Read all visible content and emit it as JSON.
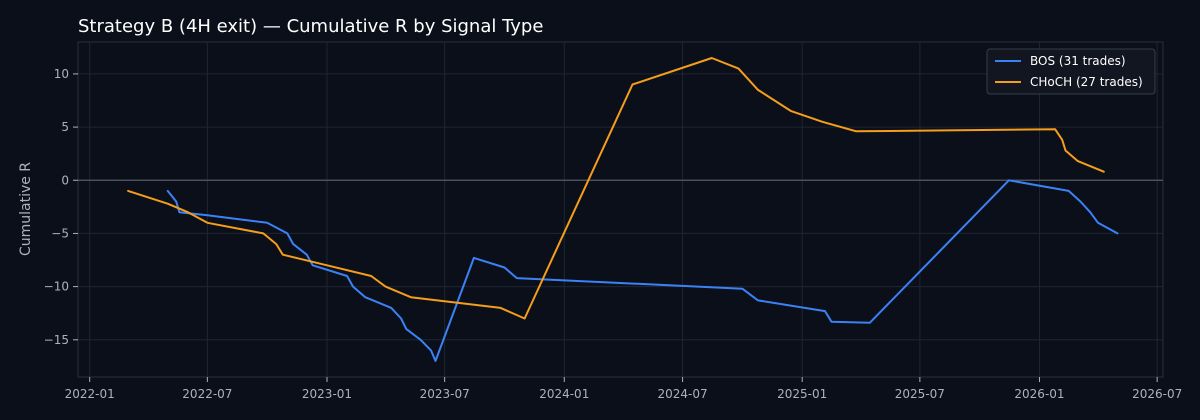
{
  "chart_data": {
    "type": "line",
    "title": "Strategy B (4H exit) — Cumulative R by Signal Type",
    "xlabel": "",
    "ylabel": "Cumulative R",
    "xlim": [
      "2021-12-14",
      "2026-07-10"
    ],
    "ylim": [
      -18.5,
      13
    ],
    "x_ticks": [
      "2022-01",
      "2022-07",
      "2023-01",
      "2023-07",
      "2024-01",
      "2024-07",
      "2025-01",
      "2025-07",
      "2026-01",
      "2026-07"
    ],
    "y_ticks": [
      -15,
      -10,
      -5,
      0,
      5,
      10
    ],
    "grid": true,
    "zero_line": true,
    "legend": {
      "position": "top-right"
    },
    "colors": {
      "background": "#0b0f19",
      "grid": "#1f2533",
      "zero_line": "#555b66",
      "BOS": "#3b82f6",
      "CHoCH": "#f59e1b"
    },
    "series": [
      {
        "name": "BOS (31 trades)",
        "color": "#3b82f6",
        "points": [
          [
            "2022-05-01",
            -1.0
          ],
          [
            "2022-05-14",
            -2.0
          ],
          [
            "2022-05-19",
            -3.0
          ],
          [
            "2022-07-01",
            -3.3
          ],
          [
            "2022-10-01",
            -4.0
          ],
          [
            "2022-11-01",
            -5.0
          ],
          [
            "2022-11-10",
            -6.0
          ],
          [
            "2022-12-01",
            -7.0
          ],
          [
            "2022-12-10",
            -8.0
          ],
          [
            "2023-02-01",
            -9.0
          ],
          [
            "2023-02-10",
            -10.0
          ],
          [
            "2023-03-01",
            -11.0
          ],
          [
            "2023-04-10",
            -12.0
          ],
          [
            "2023-04-25",
            -13.0
          ],
          [
            "2023-05-03",
            -14.0
          ],
          [
            "2023-05-25",
            -15.0
          ],
          [
            "2023-06-10",
            -16.0
          ],
          [
            "2023-06-17",
            -17.0
          ],
          [
            "2023-08-15",
            -7.3
          ],
          [
            "2023-10-01",
            -8.2
          ],
          [
            "2023-10-20",
            -9.2
          ],
          [
            "2024-10-01",
            -10.2
          ],
          [
            "2024-10-25",
            -11.3
          ],
          [
            "2025-02-05",
            -12.3
          ],
          [
            "2025-02-15",
            -13.3
          ],
          [
            "2025-04-15",
            -13.4
          ],
          [
            "2025-11-15",
            0.0
          ],
          [
            "2026-02-15",
            -1.0
          ],
          [
            "2026-03-05",
            -2.0
          ],
          [
            "2026-03-20",
            -3.0
          ],
          [
            "2026-04-01",
            -4.0
          ],
          [
            "2026-05-01",
            -5.0
          ]
        ]
      },
      {
        "name": "CHoCH (27 trades)",
        "color": "#f59e1b",
        "points": [
          [
            "2022-03-01",
            -1.0
          ],
          [
            "2022-05-01",
            -2.2
          ],
          [
            "2022-06-01",
            -3.0
          ],
          [
            "2022-07-01",
            -4.0
          ],
          [
            "2022-09-25",
            -5.0
          ],
          [
            "2022-10-15",
            -6.0
          ],
          [
            "2022-10-25",
            -7.0
          ],
          [
            "2023-01-01",
            -8.0
          ],
          [
            "2023-03-10",
            -9.0
          ],
          [
            "2023-04-01",
            -10.0
          ],
          [
            "2023-05-10",
            -11.0
          ],
          [
            "2023-09-25",
            -12.0
          ],
          [
            "2023-11-01",
            -13.0
          ],
          [
            "2024-04-15",
            9.0
          ],
          [
            "2024-08-15",
            11.5
          ],
          [
            "2024-09-25",
            10.5
          ],
          [
            "2024-10-25",
            8.5
          ],
          [
            "2024-12-15",
            6.5
          ],
          [
            "2025-02-01",
            5.5
          ],
          [
            "2025-03-25",
            4.6
          ],
          [
            "2026-01-25",
            4.8
          ],
          [
            "2026-02-05",
            3.8
          ],
          [
            "2026-02-10",
            2.8
          ],
          [
            "2026-03-01",
            1.8
          ],
          [
            "2026-04-10",
            0.8
          ]
        ]
      }
    ]
  }
}
